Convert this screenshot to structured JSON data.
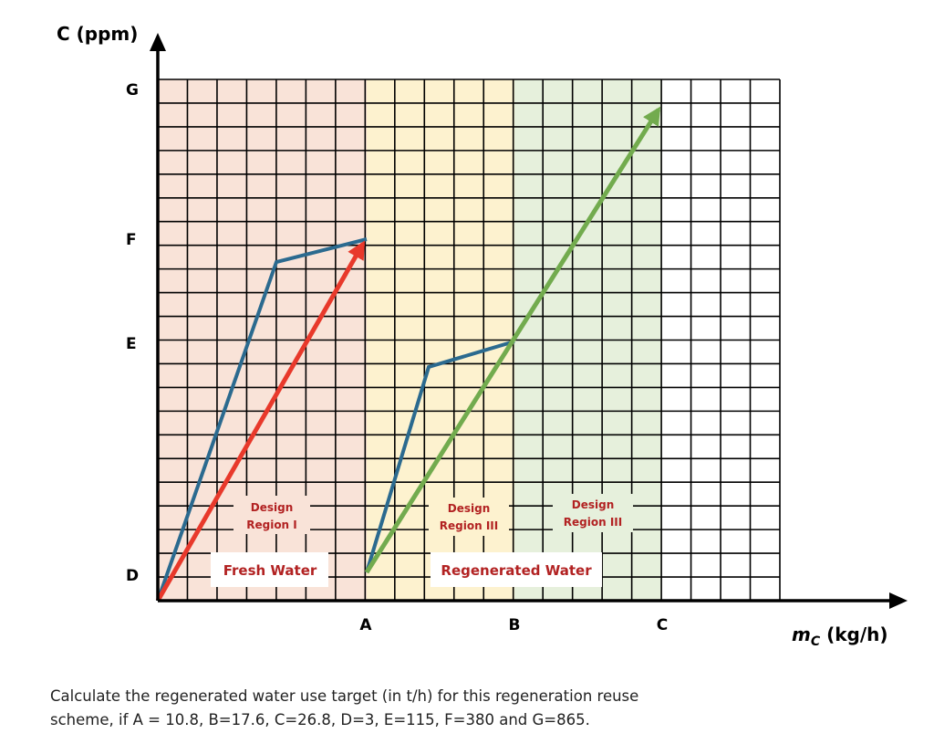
{
  "axes": {
    "y_label": "C (ppm)",
    "x_label": "m",
    "x_label_sub": "C",
    "x_label_unit": " (kg/h)",
    "y_ticks": [
      "G",
      "F",
      "E",
      "D"
    ],
    "x_ticks": [
      "A",
      "B",
      "C"
    ]
  },
  "regions": [
    {
      "label_line1": "Design",
      "label_line2": "Region I",
      "color": "#f9e3d8"
    },
    {
      "label_line1": "Design",
      "label_line2": "Region III",
      "color": "#fdf2cf"
    },
    {
      "label_line1": "Design",
      "label_line2": "Region III",
      "color": "#e6f0dc"
    }
  ],
  "boxes": {
    "fresh": "Fresh Water",
    "regenerated": "Regenerated Water"
  },
  "colors": {
    "blue": "#2b6a8f",
    "red": "#e8392b",
    "green": "#72ab4e",
    "region_text": "#b22222"
  },
  "question": {
    "line1": "Calculate the regenerated water use target (in t/h) for this regeneration reuse",
    "line2": "scheme, if A = 10.8, B=17.6, C=26.8, D=3, E=115, F=380 and G=865."
  }
}
